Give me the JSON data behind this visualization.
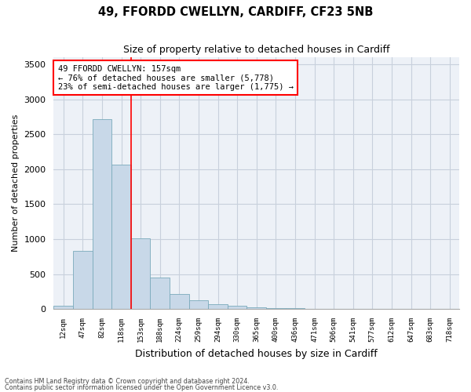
{
  "title1": "49, FFORDD CWELLYN, CARDIFF, CF23 5NB",
  "title2": "Size of property relative to detached houses in Cardiff",
  "xlabel": "Distribution of detached houses by size in Cardiff",
  "ylabel": "Number of detached properties",
  "footer1": "Contains HM Land Registry data © Crown copyright and database right 2024.",
  "footer2": "Contains public sector information licensed under the Open Government Licence v3.0.",
  "annotation_line1": "49 FFORDD CWELLYN: 157sqm",
  "annotation_line2": "← 76% of detached houses are smaller (5,778)",
  "annotation_line3": "23% of semi-detached houses are larger (1,775) →",
  "bar_labels": [
    "12sqm",
    "47sqm",
    "82sqm",
    "118sqm",
    "153sqm",
    "188sqm",
    "224sqm",
    "259sqm",
    "294sqm",
    "330sqm",
    "365sqm",
    "400sqm",
    "436sqm",
    "471sqm",
    "506sqm",
    "541sqm",
    "577sqm",
    "612sqm",
    "647sqm",
    "683sqm",
    "718sqm"
  ],
  "bar_values": [
    50,
    830,
    2720,
    2060,
    1010,
    450,
    210,
    130,
    75,
    50,
    30,
    15,
    8,
    5,
    2,
    1,
    0,
    0,
    0,
    0,
    0
  ],
  "bar_color": "#c8d8e8",
  "bar_edge_color": "#7aaabb",
  "grid_color": "#c8d0dc",
  "bg_color": "#edf1f7",
  "red_line_index": 3.5,
  "ylim": [
    0,
    3600
  ],
  "yticks": [
    0,
    500,
    1000,
    1500,
    2000,
    2500,
    3000,
    3500
  ]
}
